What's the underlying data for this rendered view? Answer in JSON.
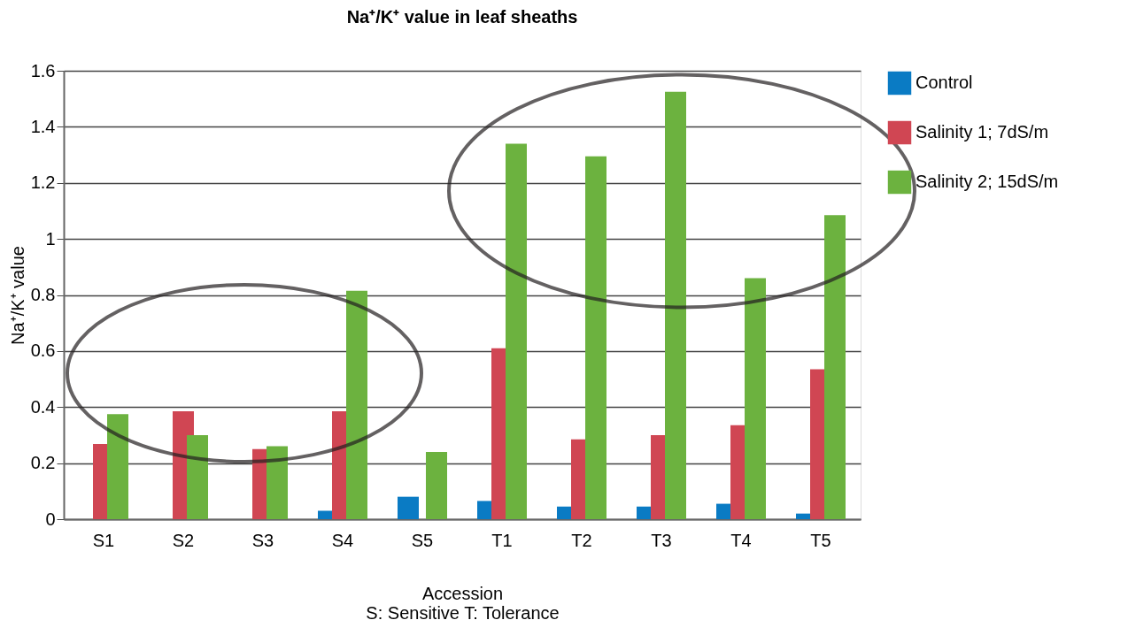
{
  "chart_data": {
    "type": "bar",
    "title": "Na⁺/K⁺ value in leaf sheaths",
    "xlabel": "Accession",
    "ylabel": "Na⁺/K⁺ value",
    "annotations": [
      "S: Sensitive T: Tolerance"
    ],
    "categories": [
      "S1",
      "S2",
      "S3",
      "S4",
      "S5",
      "T1",
      "T2",
      "T3",
      "T4",
      "T5"
    ],
    "series": [
      {
        "name": "Control",
        "color": "#0a7bc4",
        "values": [
          0,
          0,
          0,
          0.03,
          0.08,
          0.065,
          0.045,
          0.045,
          0.055,
          0.02
        ]
      },
      {
        "name": "Salinity 1; 7dS/m",
        "color": "#d04653",
        "values": [
          0.268,
          0.385,
          0.25,
          0.385,
          0,
          0.61,
          0.285,
          0.3,
          0.335,
          0.535
        ]
      },
      {
        "name": "Salinity 2; 15dS/m",
        "color": "#6cb23f",
        "values": [
          0.375,
          0.3,
          0.26,
          0.815,
          0.24,
          1.34,
          1.295,
          1.525,
          0.86,
          1.085
        ]
      }
    ],
    "ylim": [
      0,
      1.6
    ],
    "yticks": [
      0,
      0.2,
      0.4,
      0.6,
      0.8,
      1,
      1.2,
      1.4,
      1.6
    ],
    "grid": "y",
    "legend": "right"
  }
}
